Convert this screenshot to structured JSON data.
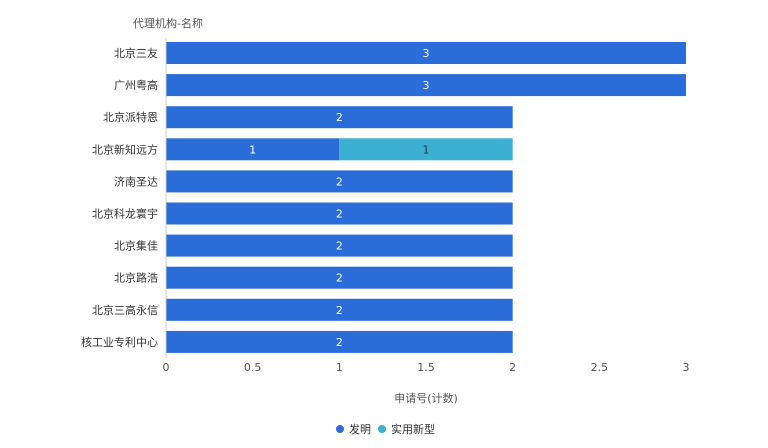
{
  "chart_data": {
    "type": "bar",
    "orientation": "horizontal",
    "stacked": true,
    "y_axis_title": "代理机构-名称",
    "xlabel": "申请号(计数)",
    "xlim": [
      0,
      3
    ],
    "x_ticks": [
      "0",
      "0.5",
      "1",
      "1.5",
      "2",
      "2.5",
      "3"
    ],
    "categories": [
      "北京三友",
      "广州粤高",
      "北京派特恩",
      "北京新知远方",
      "济南圣达",
      "北京科龙寰宇",
      "北京集佳",
      "北京路浩",
      "北京三高永信",
      "核工业专利中心"
    ],
    "series": [
      {
        "name": "发明",
        "color": "#2a6dd9",
        "values": [
          3,
          3,
          2,
          1,
          2,
          2,
          2,
          2,
          2,
          2
        ]
      },
      {
        "name": "实用新型",
        "color": "#3cb0d2",
        "values": [
          0,
          0,
          0,
          1,
          0,
          0,
          0,
          0,
          0,
          0
        ]
      }
    ],
    "grid": false,
    "legend_position": "bottom-center"
  }
}
